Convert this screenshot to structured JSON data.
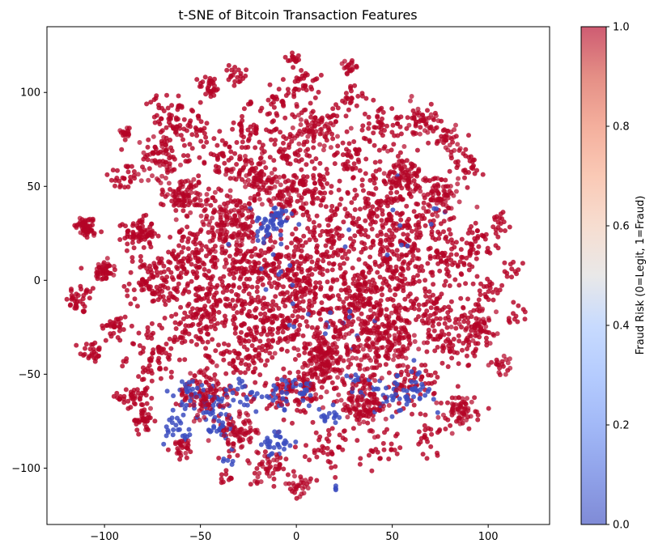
{
  "chart_data": {
    "type": "scatter",
    "title": "t-SNE of Bitcoin Transaction Features",
    "xlabel": "",
    "ylabel": "",
    "xlim": [
      -130,
      132
    ],
    "ylim": [
      -130,
      135
    ],
    "x_ticks": [
      -100,
      -50,
      0,
      50,
      100
    ],
    "y_ticks": [
      -100,
      -50,
      0,
      50,
      100
    ],
    "grid": false,
    "legend": "none",
    "colorbar": {
      "label": "Fraud Risk (0=Legit, 1=Fraud)",
      "range": [
        0,
        1
      ],
      "ticks": [
        "0.0",
        "0.2",
        "0.4",
        "0.6",
        "0.8",
        "1.0"
      ],
      "colormap": "coolwarm",
      "alpha": 0.65
    },
    "colors": {
      "fraud": "#b40426",
      "legit": "#3b4cc0",
      "axis": "#000000"
    },
    "fraud_clusters": [
      {
        "x": -110,
        "y": 28,
        "n": 30,
        "s": 3
      },
      {
        "x": -112,
        "y": -10,
        "n": 35,
        "s": 4
      },
      {
        "x": -107,
        "y": -38,
        "n": 25,
        "s": 3
      },
      {
        "x": -100,
        "y": 5,
        "n": 25,
        "s": 3
      },
      {
        "x": -95,
        "y": -25,
        "n": 30,
        "s": 4
      },
      {
        "x": -90,
        "y": 55,
        "n": 25,
        "s": 4
      },
      {
        "x": -88,
        "y": 78,
        "n": 10,
        "s": 2
      },
      {
        "x": -82,
        "y": 25,
        "n": 70,
        "s": 4
      },
      {
        "x": -85,
        "y": -62,
        "n": 40,
        "s": 4
      },
      {
        "x": -80,
        "y": -75,
        "n": 20,
        "s": 3
      },
      {
        "x": -75,
        "y": 0,
        "n": 90,
        "s": 7
      },
      {
        "x": -72,
        "y": -40,
        "n": 80,
        "s": 8
      },
      {
        "x": -70,
        "y": 65,
        "n": 40,
        "s": 7
      },
      {
        "x": -65,
        "y": 88,
        "n": 45,
        "s": 5
      },
      {
        "x": -55,
        "y": 80,
        "n": 35,
        "s": 5
      },
      {
        "x": -58,
        "y": 45,
        "n": 45,
        "s": 5
      },
      {
        "x": -55,
        "y": 10,
        "n": 120,
        "s": 9
      },
      {
        "x": -52,
        "y": -20,
        "n": 100,
        "s": 9
      },
      {
        "x": -48,
        "y": -60,
        "n": 50,
        "s": 6
      },
      {
        "x": -45,
        "y": 103,
        "n": 30,
        "s": 3
      },
      {
        "x": -40,
        "y": 65,
        "n": 40,
        "s": 6
      },
      {
        "x": -35,
        "y": 30,
        "n": 90,
        "s": 9
      },
      {
        "x": -32,
        "y": -5,
        "n": 110,
        "s": 9
      },
      {
        "x": -30,
        "y": -40,
        "n": 90,
        "s": 9
      },
      {
        "x": -30,
        "y": -80,
        "n": 40,
        "s": 6
      },
      {
        "x": -32,
        "y": 108,
        "n": 20,
        "s": 3
      },
      {
        "x": -25,
        "y": 80,
        "n": 45,
        "s": 6
      },
      {
        "x": -22,
        "y": 55,
        "n": 45,
        "s": 6
      },
      {
        "x": -15,
        "y": 10,
        "n": 120,
        "s": 9
      },
      {
        "x": -12,
        "y": -25,
        "n": 120,
        "s": 9
      },
      {
        "x": -15,
        "y": -100,
        "n": 25,
        "s": 5
      },
      {
        "x": -10,
        "y": 95,
        "n": 30,
        "s": 5
      },
      {
        "x": -5,
        "y": 70,
        "n": 45,
        "s": 6
      },
      {
        "x": -5,
        "y": 45,
        "n": 50,
        "s": 6
      },
      {
        "x": -2,
        "y": 118,
        "n": 15,
        "s": 2
      },
      {
        "x": 0,
        "y": -60,
        "n": 90,
        "s": 8
      },
      {
        "x": 2,
        "y": -110,
        "n": 15,
        "s": 3
      },
      {
        "x": 5,
        "y": 105,
        "n": 30,
        "s": 4
      },
      {
        "x": 5,
        "y": -5,
        "n": 140,
        "s": 10
      },
      {
        "x": 10,
        "y": 80,
        "n": 45,
        "s": 6
      },
      {
        "x": 12,
        "y": 50,
        "n": 55,
        "s": 6
      },
      {
        "x": 15,
        "y": 20,
        "n": 110,
        "s": 9
      },
      {
        "x": 15,
        "y": -40,
        "n": 110,
        "s": 9
      },
      {
        "x": 18,
        "y": -90,
        "n": 40,
        "s": 6
      },
      {
        "x": 25,
        "y": 95,
        "n": 30,
        "s": 5
      },
      {
        "x": 28,
        "y": 113,
        "n": 10,
        "s": 2
      },
      {
        "x": 30,
        "y": 65,
        "n": 50,
        "s": 7
      },
      {
        "x": 32,
        "y": -10,
        "n": 120,
        "s": 9
      },
      {
        "x": 35,
        "y": -65,
        "n": 70,
        "s": 7
      },
      {
        "x": 40,
        "y": 35,
        "n": 110,
        "s": 9
      },
      {
        "x": 45,
        "y": 80,
        "n": 45,
        "s": 6
      },
      {
        "x": 45,
        "y": -30,
        "n": 100,
        "s": 9
      },
      {
        "x": 45,
        "y": -90,
        "n": 25,
        "s": 5
      },
      {
        "x": 50,
        "y": 5,
        "n": 110,
        "s": 9
      },
      {
        "x": 55,
        "y": 55,
        "n": 50,
        "s": 6
      },
      {
        "x": 60,
        "y": 25,
        "n": 110,
        "s": 9
      },
      {
        "x": 60,
        "y": -55,
        "n": 60,
        "s": 7
      },
      {
        "x": 65,
        "y": 85,
        "n": 30,
        "s": 5
      },
      {
        "x": 68,
        "y": -85,
        "n": 20,
        "s": 4
      },
      {
        "x": 70,
        "y": -15,
        "n": 100,
        "s": 9
      },
      {
        "x": 75,
        "y": 45,
        "n": 40,
        "s": 6
      },
      {
        "x": 80,
        "y": 10,
        "n": 60,
        "s": 7
      },
      {
        "x": 82,
        "y": -35,
        "n": 50,
        "s": 6
      },
      {
        "x": 85,
        "y": -70,
        "n": 35,
        "s": 5
      },
      {
        "x": 90,
        "y": 60,
        "n": 25,
        "s": 4
      },
      {
        "x": 95,
        "y": 20,
        "n": 40,
        "s": 5
      },
      {
        "x": 95,
        "y": -25,
        "n": 35,
        "s": 5
      },
      {
        "x": 100,
        "y": -5,
        "n": 25,
        "s": 4
      },
      {
        "x": 105,
        "y": 30,
        "n": 15,
        "s": 3
      },
      {
        "x": 108,
        "y": -45,
        "n": 10,
        "s": 3
      },
      {
        "x": 112,
        "y": 5,
        "n": 12,
        "s": 3
      },
      {
        "x": 115,
        "y": -20,
        "n": 12,
        "s": 3
      },
      {
        "x": -60,
        "y": -90,
        "n": 15,
        "s": 3
      },
      {
        "x": -38,
        "y": -105,
        "n": 10,
        "s": 2
      },
      {
        "x": -75,
        "y": 100,
        "n": 15,
        "s": 3
      },
      {
        "x": 78,
        "y": 75,
        "n": 20,
        "s": 4
      }
    ],
    "legit_clusters": [
      {
        "x": -15,
        "y": 28,
        "n": 40,
        "s": 5
      },
      {
        "x": -8,
        "y": 35,
        "n": 15,
        "s": 3
      },
      {
        "x": -62,
        "y": -80,
        "n": 25,
        "s": 4
      },
      {
        "x": -55,
        "y": -60,
        "n": 25,
        "s": 4
      },
      {
        "x": -45,
        "y": -65,
        "n": 30,
        "s": 5
      },
      {
        "x": -40,
        "y": -80,
        "n": 20,
        "s": 4
      },
      {
        "x": -28,
        "y": -62,
        "n": 25,
        "s": 5
      },
      {
        "x": -10,
        "y": -88,
        "n": 30,
        "s": 4
      },
      {
        "x": -8,
        "y": -60,
        "n": 25,
        "s": 5
      },
      {
        "x": 5,
        "y": -60,
        "n": 15,
        "s": 3
      },
      {
        "x": 18,
        "y": -70,
        "n": 15,
        "s": 4
      },
      {
        "x": 28,
        "y": -55,
        "n": 10,
        "s": 3
      },
      {
        "x": 48,
        "y": -60,
        "n": 30,
        "s": 5
      },
      {
        "x": 62,
        "y": -58,
        "n": 30,
        "s": 5
      },
      {
        "x": -5,
        "y": 0,
        "n": 12,
        "s": 12
      },
      {
        "x": 20,
        "y": -30,
        "n": 10,
        "s": 12
      },
      {
        "x": 45,
        "y": 30,
        "n": 8,
        "s": 10
      },
      {
        "x": 75,
        "y": 35,
        "n": 4,
        "s": 3
      },
      {
        "x": -35,
        "y": -95,
        "n": 6,
        "s": 2
      },
      {
        "x": 20,
        "y": -110,
        "n": 4,
        "s": 2
      }
    ]
  }
}
